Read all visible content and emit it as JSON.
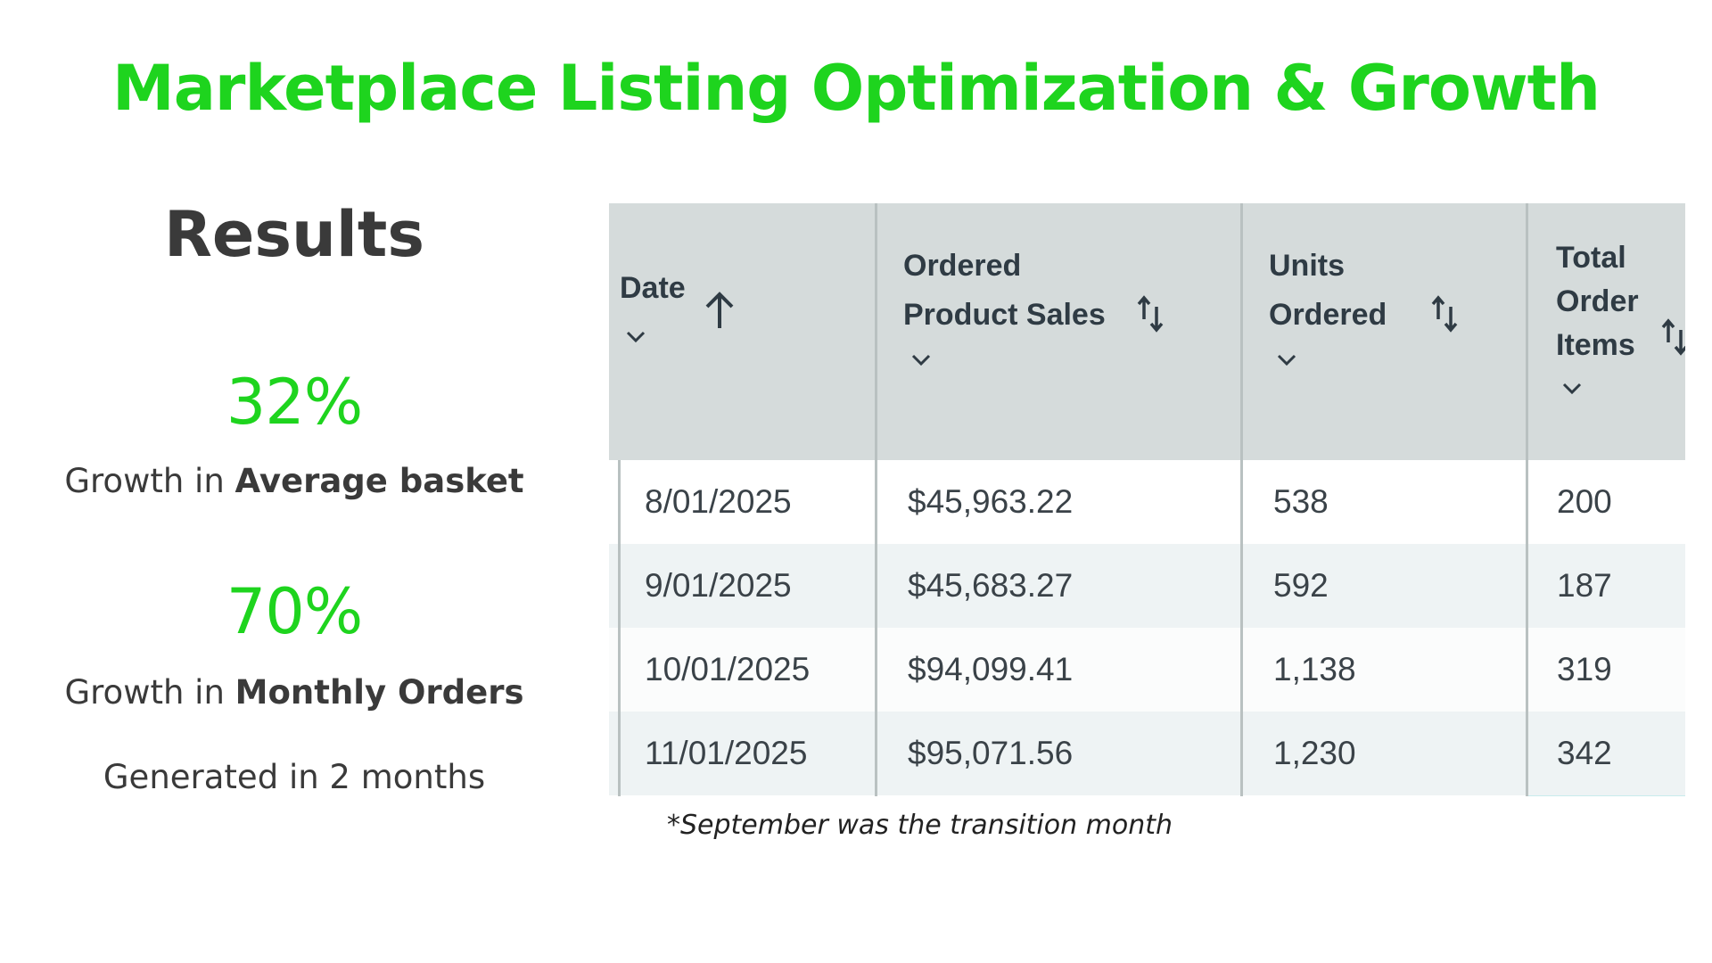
{
  "slide": {
    "title": "Marketplace Listing Optimization & Growth",
    "accent_color": "#1ed41e"
  },
  "results": {
    "heading": "Results",
    "stats": [
      {
        "value": "32%",
        "caption_prefix": "Growth in ",
        "caption_bold": "Average basket"
      },
      {
        "value": "70%",
        "caption_prefix": "Growth in ",
        "caption_bold": "Monthly Orders"
      }
    ],
    "generated": "Generated in 2 months"
  },
  "table": {
    "header_bg": "#d5dbdb",
    "highlight_color": "#c8ecec",
    "columns": [
      {
        "label": "Date",
        "sort_icon": "arrow-up-icon",
        "dropdown_icon": "chevron-down-icon"
      },
      {
        "label": "Ordered Product Sales",
        "sort_icon": "sort-updown-icon",
        "dropdown_icon": "chevron-down-icon"
      },
      {
        "label": "Units Ordered",
        "sort_icon": "sort-updown-icon",
        "dropdown_icon": "chevron-down-icon"
      },
      {
        "label": "Total Order Items",
        "sort_icon": "sort-updown-icon",
        "dropdown_icon": "chevron-down-icon"
      }
    ],
    "header_lines": {
      "date": [
        "Date"
      ],
      "sales": [
        "Ordered",
        "Product Sales"
      ],
      "units": [
        "Units",
        "Ordered"
      ],
      "items": [
        "Total",
        "Order",
        "Items"
      ]
    },
    "rows": [
      {
        "date": "8/01/2025",
        "sales": "$45,963.22",
        "units": "538",
        "items": "200"
      },
      {
        "date": "9/01/2025",
        "sales": "$45,683.27",
        "units": "592",
        "items": "187"
      },
      {
        "date": "10/01/2025",
        "sales": "$94,099.41",
        "units": "1,138",
        "items": "319"
      },
      {
        "date": "11/01/2025",
        "sales": "$95,071.56",
        "units": "1,230",
        "items": "342"
      }
    ]
  },
  "footnote": "*September was the transition month"
}
